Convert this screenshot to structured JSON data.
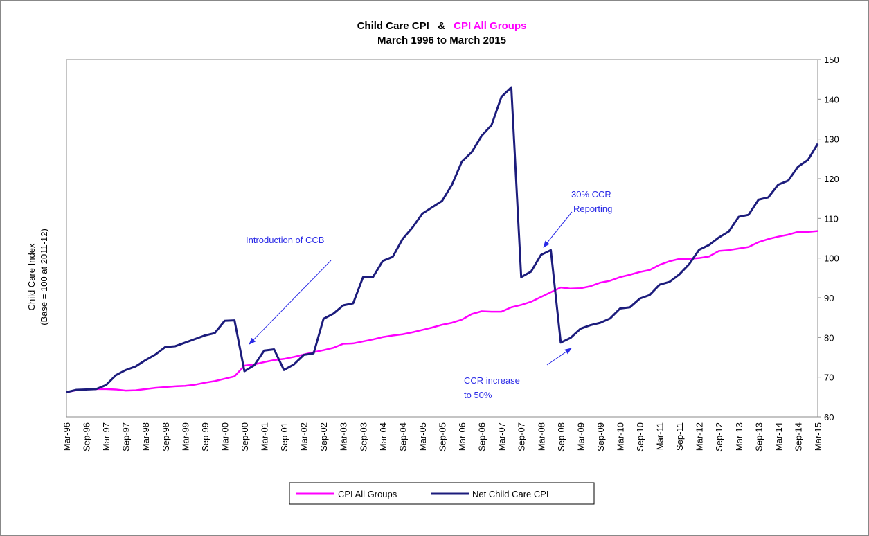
{
  "chart_data": {
    "type": "line",
    "title": "Child Care CPI   &",
    "title_highlight": "CPI All Groups",
    "title_highlight_color": "#ff00ff",
    "subtitle": "March 1996 to March 2015",
    "y_label_lines": [
      "Child Care Index",
      "(Base = 100 at 2011-12)"
    ],
    "y_axis_side": "right",
    "ylim": [
      60,
      150
    ],
    "yticks": [
      60,
      70,
      80,
      90,
      100,
      110,
      120,
      130,
      140,
      150
    ],
    "legend": "bottom",
    "categories": [
      "Mar-96",
      null,
      "Sep-96",
      null,
      "Mar-97",
      null,
      "Sep-97",
      null,
      "Mar-98",
      null,
      "Sep-98",
      null,
      "Mar-99",
      null,
      "Sep-99",
      null,
      "Mar-00",
      null,
      "Sep-00",
      null,
      "Mar-01",
      null,
      "Sep-01",
      null,
      "Mar-02",
      null,
      "Sep-02",
      null,
      "Mar-03",
      null,
      "Sep-03",
      null,
      "Mar-04",
      null,
      "Sep-04",
      null,
      "Mar-05",
      null,
      "Sep-05",
      null,
      "Mar-06",
      null,
      "Sep-06",
      null,
      "Mar-07",
      null,
      "Sep-07",
      null,
      "Mar-08",
      null,
      "Sep-08",
      null,
      "Mar-09",
      null,
      "Sep-09",
      null,
      "Mar-10",
      null,
      "Sep-10",
      null,
      "Mar-11",
      null,
      "Sep-11",
      null,
      "Mar-12",
      null,
      "Sep-12",
      null,
      "Mar-13",
      null,
      "Sep-13",
      null,
      "Mar-14",
      null,
      "Sep-14",
      null,
      "Mar-15"
    ],
    "series": [
      {
        "name": "CPI All Groups",
        "color": "#ff00ff",
        "values": [
          66.2,
          66.7,
          66.9,
          67.0,
          67.0,
          66.9,
          66.6,
          66.7,
          67.0,
          67.3,
          67.5,
          67.7,
          67.8,
          68.1,
          68.6,
          69.0,
          69.6,
          70.2,
          72.9,
          73.2,
          73.8,
          74.3,
          74.6,
          75.1,
          75.7,
          76.3,
          76.8,
          77.4,
          78.4,
          78.5,
          79.0,
          79.5,
          80.1,
          80.5,
          80.8,
          81.3,
          81.9,
          82.5,
          83.2,
          83.7,
          84.5,
          85.9,
          86.6,
          86.5,
          86.5,
          87.6,
          88.2,
          89.0,
          90.2,
          91.4,
          92.6,
          92.3,
          92.4,
          92.9,
          93.8,
          94.3,
          95.2,
          95.8,
          96.5,
          97.0,
          98.3,
          99.2,
          99.8,
          99.8,
          100.0,
          100.4,
          101.8,
          102.0,
          102.4,
          102.8,
          104.0,
          104.8,
          105.4,
          105.9,
          106.6,
          106.6,
          106.8
        ]
      },
      {
        "name": "Net Child Care CPI",
        "color": "#1c1c7c",
        "values": [
          66.2,
          66.8,
          66.9,
          67.0,
          68.0,
          70.5,
          71.8,
          72.7,
          74.3,
          75.7,
          77.6,
          77.8,
          78.7,
          79.6,
          80.5,
          81.1,
          84.2,
          84.3,
          71.5,
          73.0,
          76.7,
          77.0,
          71.8,
          73.2,
          75.6,
          76.0,
          84.7,
          86.0,
          88.1,
          88.6,
          95.2,
          95.2,
          99.3,
          100.3,
          104.8,
          107.7,
          111.2,
          112.8,
          114.4,
          118.5,
          124.3,
          126.7,
          130.8,
          133.5,
          140.6,
          143.0,
          95.2,
          96.6,
          100.8,
          102.0,
          78.7,
          79.9,
          82.2,
          83.1,
          83.7,
          84.8,
          87.3,
          87.6,
          89.8,
          90.7,
          93.3,
          94.0,
          95.9,
          98.5,
          102.1,
          103.3,
          105.2,
          106.7,
          110.4,
          110.9,
          114.7,
          115.3,
          118.5,
          119.5,
          123.0,
          124.7,
          128.8
        ]
      }
    ],
    "annotations": [
      {
        "lines": [
          "Introduction of CCB"
        ]
      },
      {
        "lines": [
          "30% CCR",
          "Reporting"
        ]
      },
      {
        "lines": [
          "CCR increase",
          "to 50%"
        ]
      }
    ]
  }
}
